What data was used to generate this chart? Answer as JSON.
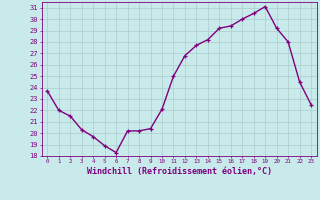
{
  "x": [
    0,
    1,
    2,
    3,
    4,
    5,
    6,
    7,
    8,
    9,
    10,
    11,
    12,
    13,
    14,
    15,
    16,
    17,
    18,
    19,
    20,
    21,
    22,
    23
  ],
  "y": [
    23.7,
    22.0,
    21.5,
    20.3,
    19.7,
    18.9,
    18.3,
    20.2,
    20.2,
    20.4,
    22.1,
    25.0,
    26.8,
    27.7,
    28.2,
    29.2,
    29.4,
    30.0,
    30.5,
    31.1,
    29.2,
    28.0,
    24.5,
    22.5
  ],
  "line_color": "#800080",
  "marker": "+",
  "marker_size": 3,
  "bg_color": "#c8eaea",
  "grid_color": "#aacccc",
  "xlabel": "Windchill (Refroidissement éolien,°C)",
  "xlabel_color": "#800080",
  "tick_color": "#800080",
  "ylim": [
    18,
    31.5
  ],
  "xlim": [
    -0.5,
    23.5
  ],
  "yticks": [
    18,
    19,
    20,
    21,
    22,
    23,
    24,
    25,
    26,
    27,
    28,
    29,
    30,
    31
  ],
  "xticks": [
    0,
    1,
    2,
    3,
    4,
    5,
    6,
    7,
    8,
    9,
    10,
    11,
    12,
    13,
    14,
    15,
    16,
    17,
    18,
    19,
    20,
    21,
    22,
    23
  ],
  "line_width": 1.0
}
